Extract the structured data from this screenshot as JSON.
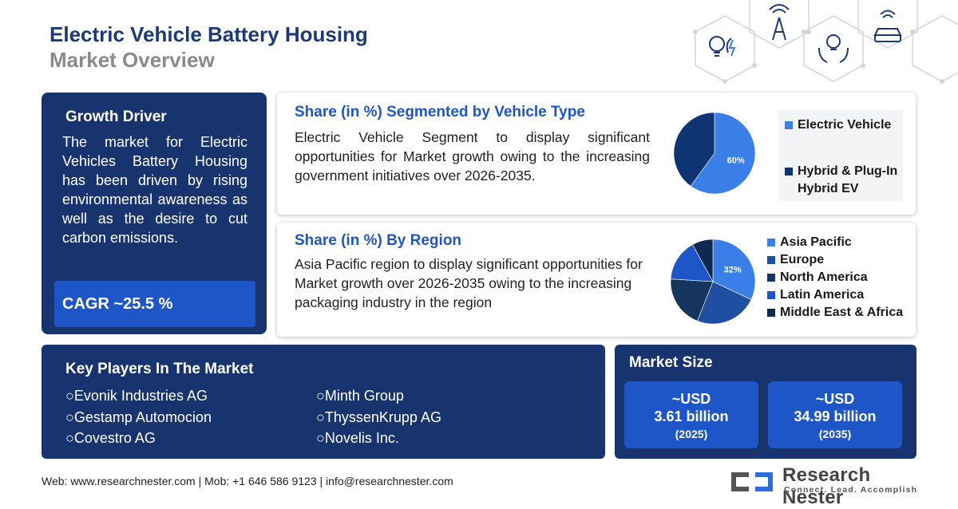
{
  "header": {
    "title_line1": "Electric Vehicle Battery Housing",
    "title_line2": "Market Overview"
  },
  "growth_driver": {
    "title": "Growth Driver",
    "text": "The market for Electric Vehicles Battery Housing has been driven by rising environmental awareness as well as the desire to cut carbon emissions.",
    "cagr": "CAGR ~25.5 %"
  },
  "vehicle_type": {
    "title": "Share (in %) Segmented by Vehicle Type",
    "text": "Electric Vehicle Segment to display significant opportunities for Market growth owing to the increasing government initiatives over 2026-2035.",
    "legend": [
      "Electric Vehicle",
      "Hybrid & Plug-In Hybrid EV"
    ]
  },
  "region": {
    "title": "Share (in %) By Region",
    "text": "Asia Pacific region to display significant opportunities for Market growth over 2026-2035 owing to the increasing packaging industry in the region",
    "legend": [
      "Asia Pacific",
      "Europe",
      "North America",
      "Latin America",
      "Middle East & Africa"
    ]
  },
  "key_players": {
    "title": "Key Players In The Market",
    "left": [
      "Evonik Industries AG",
      "Gestamp Automocion",
      "Covestro AG"
    ],
    "right": [
      "Minth Group",
      "ThyssenKrupp AG",
      "Novelis Inc."
    ]
  },
  "market_size": {
    "title": "Market Size",
    "boxes": [
      {
        "prefix": "~USD",
        "value": "3.61 billion",
        "year": "(2025)"
      },
      {
        "prefix": "~USD",
        "value": "34.99 billion",
        "year": "(2035)"
      }
    ]
  },
  "footer": {
    "contact": "Web: www.researchnester.com | Mob: +1 646 586 9123 | info@researchnester.com"
  },
  "logo": {
    "name": "Research Nester",
    "tagline": "Connect. Lead. Accomplish"
  },
  "colors": {
    "navy": "#17346e",
    "blue": "#1f56c7",
    "light_blue": "#3a7ee8",
    "dark_navy": "#0f3472"
  },
  "chart_data": [
    {
      "type": "pie",
      "categories": [
        "Electric Vehicle",
        "Hybrid & Plug-In Hybrid EV"
      ],
      "values": [
        60,
        40
      ],
      "labels": [
        "60%",
        ""
      ],
      "colors": [
        "#3a7ee8",
        "#0f3472"
      ]
    },
    {
      "type": "pie",
      "categories": [
        "Asia Pacific",
        "Europe",
        "North America",
        "Latin America",
        "Middle East & Africa"
      ],
      "values": [
        32,
        24,
        20,
        16,
        8
      ],
      "labels": [
        "32%",
        "",
        "",
        "",
        ""
      ],
      "colors": [
        "#3a7ee8",
        "#1f4fa0",
        "#15355f",
        "#1f56c7",
        "#0e2850"
      ]
    }
  ]
}
